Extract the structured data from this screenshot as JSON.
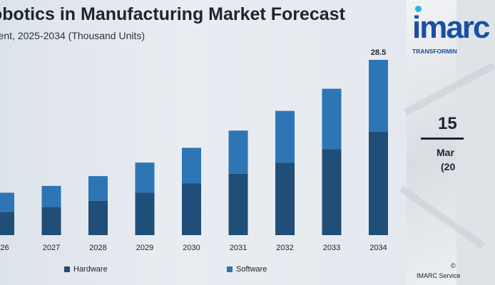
{
  "header": {
    "title": "obotics in Manufacturing Market Forecast",
    "subtitle": "onent, 2025-2034 (Thousand Units)"
  },
  "chart_data": {
    "type": "bar",
    "stacked": true,
    "categories": [
      "26",
      "2027",
      "2028",
      "2029",
      "2030",
      "2031",
      "2032",
      "2033",
      "2034"
    ],
    "series": [
      {
        "name": "Hardware",
        "color": "#1f4e79",
        "values": [
          3.8,
          4.6,
          5.6,
          6.9,
          8.4,
          10.0,
          11.8,
          14.0,
          16.8
        ]
      },
      {
        "name": "Software",
        "color": "#2e75b6",
        "values": [
          3.1,
          3.4,
          4.0,
          4.9,
          5.8,
          7.0,
          8.4,
          9.8,
          11.7
        ]
      }
    ],
    "data_labels": [
      {
        "category": "2034",
        "text": "28.5"
      }
    ],
    "ylim": [
      0,
      30
    ],
    "grid": false,
    "legend_position": "bottom"
  },
  "sidebar": {
    "logo": "imarc",
    "tagline": "TRANSFORMIN",
    "kpi_value": "15",
    "kpi_label": "Mar",
    "kpi_year": "(20",
    "footer_line1": "©",
    "footer_line2": "IMARC Service"
  }
}
